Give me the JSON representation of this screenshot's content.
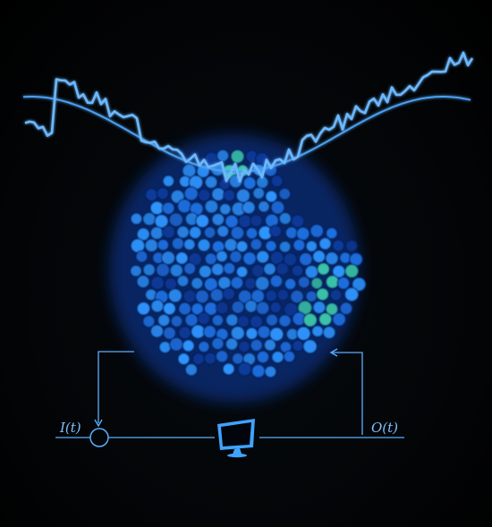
{
  "labels": {
    "input": "I(t)",
    "output": "O(t)"
  },
  "icons": {
    "controller": "computer-monitor-icon",
    "junction": "summing-junction-icon"
  },
  "colors": {
    "background": "#000000",
    "signal": "#5aaeff",
    "cells_dark": "#0a3a9a",
    "cells_bright": "#2f95ff",
    "cells_highlight": "#3fd0b0"
  }
}
